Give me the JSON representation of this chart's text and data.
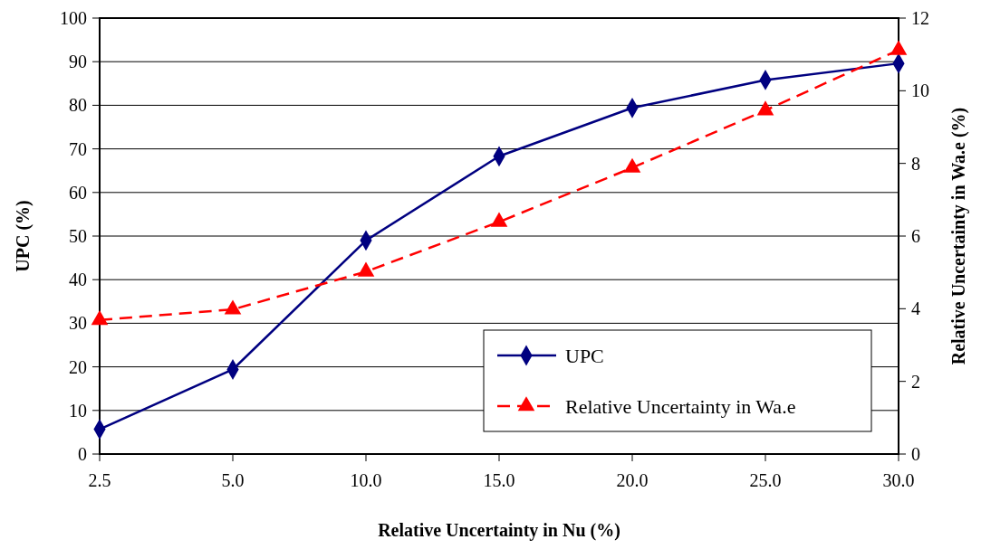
{
  "chart_data": {
    "type": "line",
    "xlabel": "Relative Uncertainty in Nu (%)",
    "ylabel": "UPC (%)",
    "y2label": "Relative Uncertainty in Wa.e (%)",
    "categories": [
      "2.5",
      "5.0",
      "10.0",
      "15.0",
      "20.0",
      "25.0",
      "30.0"
    ],
    "series": [
      {
        "name": "UPC",
        "color": "#000080",
        "values": [
          5.7,
          19.4,
          49.0,
          68.3,
          79.4,
          85.8,
          89.6
        ],
        "marker": "diamond",
        "line_style": "solid"
      },
      {
        "name": "Relative Uncertainty in Wa.e",
        "color": "#ff0000",
        "values": [
          3.69,
          3.98,
          5.02,
          6.39,
          7.88,
          9.46,
          11.12
        ],
        "axis": "y2",
        "marker": "triangle",
        "line_style": "dashed"
      }
    ],
    "ylim": [
      0,
      100
    ],
    "yticks": [
      0,
      10,
      20,
      30,
      40,
      50,
      60,
      70,
      80,
      90,
      100
    ],
    "y2lim": [
      0,
      12
    ],
    "y2ticks": [
      0,
      2,
      4,
      6,
      8,
      10,
      12
    ],
    "grid": "y",
    "legend": "bottom right"
  }
}
